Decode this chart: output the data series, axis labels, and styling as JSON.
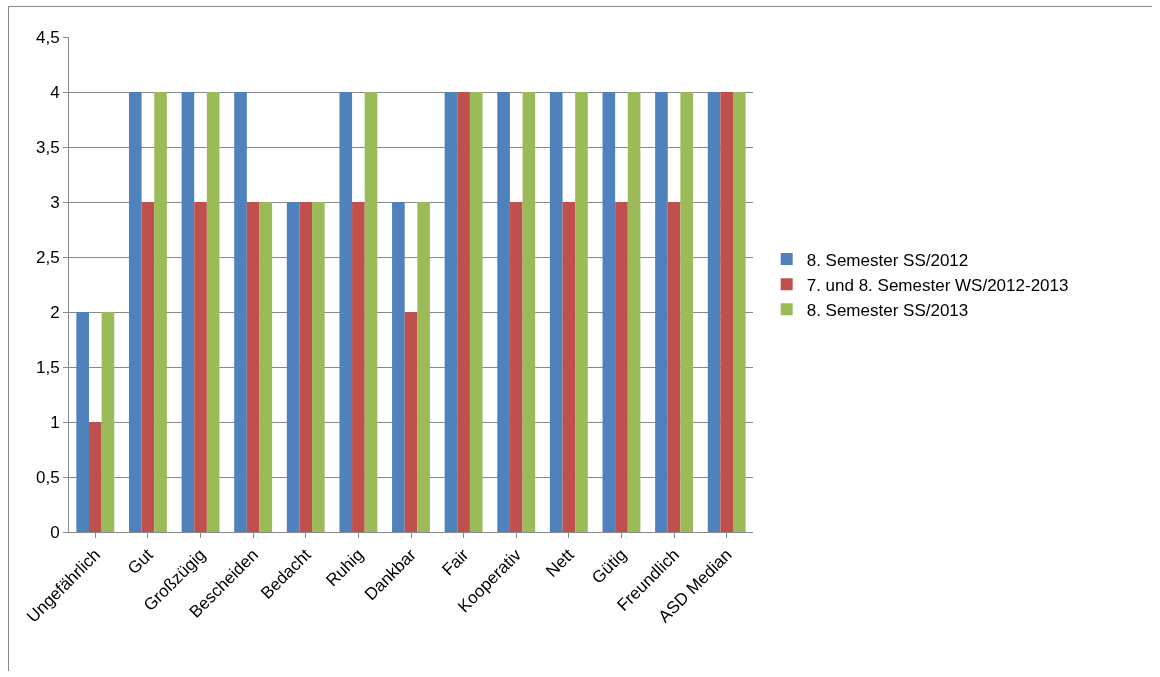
{
  "chart_data": {
    "type": "bar",
    "categories": [
      "Ungefährlich",
      "Gut",
      "Großzügig",
      "Bescheiden",
      "Bedacht",
      "Ruhig",
      "Dankbar",
      "Fair",
      "Kooperativ",
      "Nett",
      "Gütig",
      "Freundlich",
      "ASD Median"
    ],
    "series": [
      {
        "name": "8. Semester SS/2012",
        "color": "#4f81bd",
        "values": [
          2,
          4,
          4,
          4,
          3,
          4,
          3,
          4,
          4,
          4,
          4,
          4,
          4
        ]
      },
      {
        "name": "7. und 8. Semester WS/2012-2013",
        "color": "#c0504d",
        "values": [
          1,
          3,
          3,
          3,
          3,
          3,
          2,
          4,
          3,
          3,
          3,
          3,
          4
        ]
      },
      {
        "name": "8. Semester SS/2013",
        "color": "#9bbb59",
        "values": [
          2,
          4,
          4,
          3,
          3,
          4,
          3,
          4,
          4,
          4,
          4,
          4,
          4
        ]
      }
    ],
    "ylim": [
      0,
      4.5
    ],
    "yticks": [
      0,
      {
        "value": 0.5,
        "label": "0,5"
      },
      1,
      {
        "value": 1.5,
        "label": "1,5"
      },
      2,
      {
        "value": 2.5,
        "label": "2,5"
      },
      3,
      {
        "value": 3.5,
        "label": "3,5"
      },
      4,
      {
        "value": 4.5,
        "label": "4,5"
      }
    ],
    "grid": "y",
    "legend": "right"
  }
}
